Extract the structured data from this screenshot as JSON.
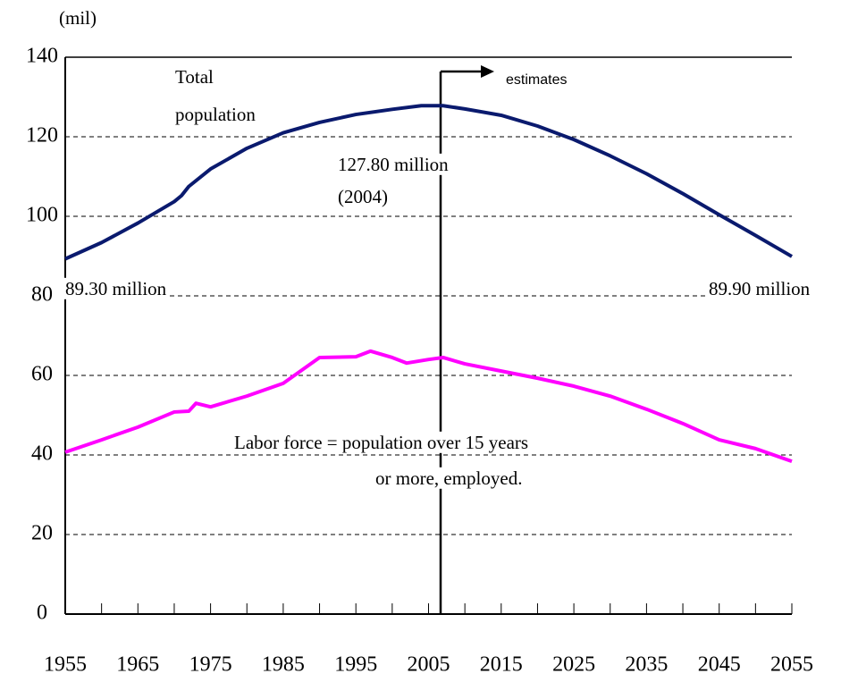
{
  "chart_data": {
    "type": "line",
    "y_label": "(mil)",
    "xlim": [
      1955,
      2055
    ],
    "xticks": [
      1955,
      1965,
      1975,
      1985,
      1995,
      2005,
      2015,
      2025,
      2035,
      2045,
      2055
    ],
    "xminorticks": [
      1960,
      1970,
      1980,
      1990,
      2000,
      2010,
      2020,
      2030,
      2040,
      2050
    ],
    "ylim": [
      0,
      140
    ],
    "yticks": [
      0,
      20,
      40,
      60,
      80,
      100,
      120,
      140
    ],
    "grid": true,
    "series": [
      {
        "name": "Total population",
        "color": "#0a1a6e",
        "x": [
          1955,
          1960,
          1965,
          1970,
          1971,
          1972,
          1975,
          1980,
          1985,
          1990,
          1995,
          2000,
          2004,
          2007,
          2010,
          2015,
          2020,
          2025,
          2030,
          2035,
          2040,
          2045,
          2050,
          2055
        ],
        "values": [
          89.3,
          93.4,
          98.3,
          103.7,
          105.2,
          107.5,
          111.9,
          117.1,
          121.0,
          123.6,
          125.6,
          126.9,
          127.8,
          127.8,
          127.0,
          125.4,
          122.7,
          119.3,
          115.2,
          110.7,
          105.7,
          100.4,
          95.2,
          89.9
        ]
      },
      {
        "name": "Labor force",
        "color": "#ff00ff",
        "x": [
          1955,
          1960,
          1965,
          1970,
          1972,
          1973,
          1975,
          1980,
          1985,
          1990,
          1995,
          1997,
          2000,
          2002,
          2005,
          2007,
          2010,
          2015,
          2020,
          2025,
          2030,
          2035,
          2040,
          2045,
          2050,
          2055
        ],
        "values": [
          40.7,
          43.8,
          47.0,
          50.8,
          51.0,
          53.0,
          52.1,
          54.8,
          58.0,
          64.5,
          64.7,
          66.1,
          64.5,
          63.1,
          64.0,
          64.5,
          62.9,
          61.1,
          59.3,
          57.3,
          54.8,
          51.5,
          47.9,
          43.8,
          41.6,
          38.4
        ]
      }
    ],
    "annotations": [
      "Total",
      "population",
      "estimates",
      "127.80 million",
      "(2004)",
      "89.30 million",
      "89.90 million",
      "Labor force = population over 15 years",
      "or more, employed."
    ]
  }
}
